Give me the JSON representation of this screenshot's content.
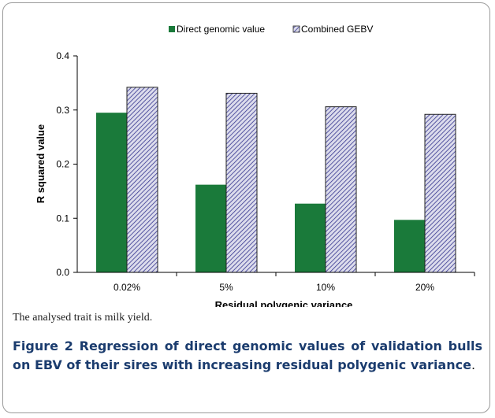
{
  "chart_data": {
    "type": "bar",
    "categories": [
      "0.02%",
      "5%",
      "10%",
      "20%"
    ],
    "series": [
      {
        "name": "Direct genomic value",
        "values": [
          0.295,
          0.162,
          0.127,
          0.097
        ],
        "color": "#1a7a3a"
      },
      {
        "name": "Combined GEBV",
        "values": [
          0.342,
          0.331,
          0.306,
          0.292
        ],
        "color": "#3a3aa0",
        "pattern": "diagonal-hatch"
      }
    ],
    "xlabel": "Residual polygenic variance",
    "ylabel": "R squared value",
    "ylim": [
      0,
      0.4
    ],
    "yticks": [
      "0.0",
      "0.1",
      "0.2",
      "0.3",
      "0.4"
    ],
    "legend_position": "top"
  },
  "note": "The analysed trait is milk yield.",
  "caption": {
    "label": "Figure 2",
    "text": "Regression of direct genomic values of validation bulls on EBV of their sires with increasing residual polygenic variance",
    "end": "."
  }
}
